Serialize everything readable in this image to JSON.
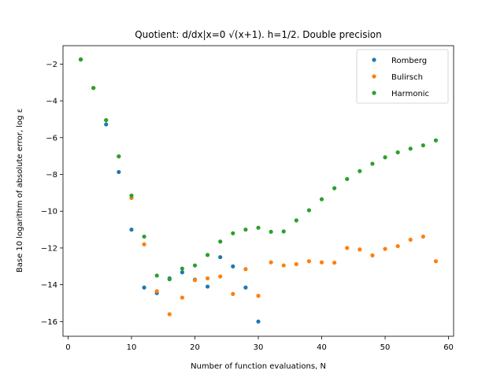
{
  "chart_data": {
    "type": "scatter",
    "title": "Quotient: d/dx|x=0 √(x+1). h=1/2. Double precision",
    "xlabel": "Number of function evaluations, N",
    "ylabel": "Base 10 logarithm of absolute error, log ε",
    "xlim": [
      -0.8,
      60.8
    ],
    "ylim": [
      -16.8,
      -1.0
    ],
    "xticks": [
      0,
      10,
      20,
      30,
      40,
      50,
      60
    ],
    "yticks": [
      -16,
      -14,
      -12,
      -10,
      -8,
      -6,
      -4,
      -2
    ],
    "grid": false,
    "legend_position": "top-right",
    "series": [
      {
        "name": "Romberg",
        "color": "#1f77b4",
        "points": [
          [
            2,
            -1.75
          ],
          [
            4,
            -3.3
          ],
          [
            6,
            -5.28
          ],
          [
            8,
            -7.87
          ],
          [
            10,
            -11.0
          ],
          [
            12,
            -14.15
          ],
          [
            14,
            -14.45
          ],
          [
            16,
            -13.65
          ],
          [
            18,
            -13.32
          ],
          [
            20,
            -13.72
          ],
          [
            22,
            -14.1
          ],
          [
            24,
            -12.5
          ],
          [
            26,
            -13.0
          ],
          [
            28,
            -14.15
          ],
          [
            30,
            -16.0
          ]
        ]
      },
      {
        "name": "Bulirsch",
        "color": "#ff7f0e",
        "points": [
          [
            2,
            -1.75
          ],
          [
            4,
            -3.3
          ],
          [
            6,
            -5.05
          ],
          [
            8,
            -7.02
          ],
          [
            10,
            -9.28
          ],
          [
            12,
            -11.8
          ],
          [
            14,
            -14.35
          ],
          [
            16,
            -15.6
          ],
          [
            18,
            -14.7
          ],
          [
            20,
            -13.75
          ],
          [
            22,
            -13.65
          ],
          [
            24,
            -13.55
          ],
          [
            26,
            -14.5
          ],
          [
            28,
            -13.15
          ],
          [
            30,
            -14.6
          ],
          [
            32,
            -12.78
          ],
          [
            34,
            -12.95
          ],
          [
            36,
            -12.88
          ],
          [
            38,
            -12.72
          ],
          [
            40,
            -12.78
          ],
          [
            42,
            -12.8
          ],
          [
            44,
            -12.0
          ],
          [
            46,
            -12.08
          ],
          [
            48,
            -12.4
          ],
          [
            50,
            -12.05
          ],
          [
            52,
            -11.9
          ],
          [
            54,
            -11.55
          ],
          [
            56,
            -11.38
          ],
          [
            58,
            -12.72
          ]
        ]
      },
      {
        "name": "Harmonic",
        "color": "#2ca02c",
        "points": [
          [
            2,
            -1.75
          ],
          [
            4,
            -3.3
          ],
          [
            6,
            -5.05
          ],
          [
            8,
            -7.02
          ],
          [
            10,
            -9.15
          ],
          [
            12,
            -11.38
          ],
          [
            14,
            -13.5
          ],
          [
            16,
            -13.7
          ],
          [
            18,
            -13.12
          ],
          [
            20,
            -12.95
          ],
          [
            22,
            -12.38
          ],
          [
            24,
            -11.65
          ],
          [
            26,
            -11.2
          ],
          [
            28,
            -11.0
          ],
          [
            30,
            -10.9
          ],
          [
            32,
            -11.12
          ],
          [
            34,
            -11.1
          ],
          [
            36,
            -10.5
          ],
          [
            38,
            -9.95
          ],
          [
            40,
            -9.35
          ],
          [
            42,
            -8.75
          ],
          [
            44,
            -8.25
          ],
          [
            46,
            -7.82
          ],
          [
            48,
            -7.42
          ],
          [
            50,
            -7.07
          ],
          [
            52,
            -6.8
          ],
          [
            54,
            -6.6
          ],
          [
            56,
            -6.42
          ],
          [
            58,
            -6.15
          ]
        ]
      }
    ]
  }
}
